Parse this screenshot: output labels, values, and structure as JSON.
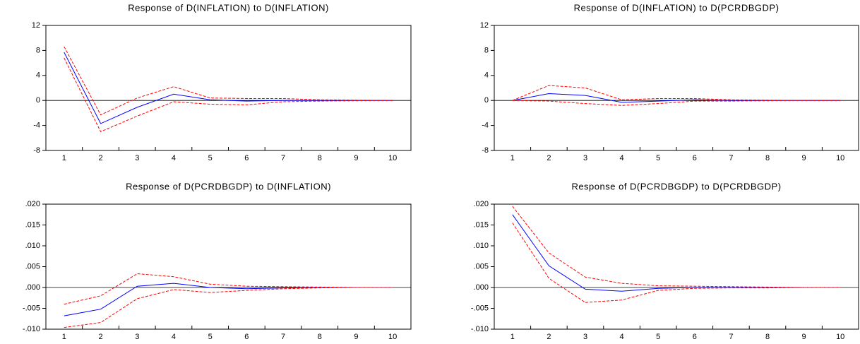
{
  "chart_data": [
    {
      "type": "line",
      "title": "Response of D(INFLATION) to D(INFLATION)",
      "categories": [
        "1",
        "2",
        "3",
        "4",
        "5",
        "6",
        "7",
        "8",
        "9",
        "10"
      ],
      "ylim": [
        -8,
        12
      ],
      "yticks": [
        -8,
        -4,
        0,
        4,
        8,
        12
      ],
      "series": [
        {
          "color": "#0000ff",
          "style": "solid",
          "values": [
            7.7,
            -3.7,
            -1.1,
            1.0,
            0.1,
            -0.1,
            0.0,
            0.0,
            0.0,
            0.0
          ]
        },
        {
          "color": "#ff0000",
          "style": "dashed",
          "values": [
            8.6,
            -2.3,
            0.4,
            2.2,
            0.4,
            0.3,
            0.3,
            0.1,
            0.05,
            0.0
          ]
        },
        {
          "color": "#ff0000",
          "style": "dashed",
          "values": [
            6.8,
            -5.0,
            -2.5,
            -0.2,
            -0.6,
            -0.7,
            -0.2,
            -0.1,
            -0.05,
            0.0
          ]
        }
      ]
    },
    {
      "type": "line",
      "title": "Response of D(INFLATION) to D(PCRDBGDP)",
      "categories": [
        "1",
        "2",
        "3",
        "4",
        "5",
        "6",
        "7",
        "8",
        "9",
        "10"
      ],
      "ylim": [
        -8,
        12
      ],
      "yticks": [
        -8,
        -4,
        0,
        4,
        8,
        12
      ],
      "series": [
        {
          "color": "#0000ff",
          "style": "solid",
          "values": [
            0.0,
            1.1,
            0.8,
            -0.3,
            -0.1,
            0.1,
            0.0,
            0.0,
            0.0,
            0.0
          ]
        },
        {
          "color": "#ff0000",
          "style": "dashed",
          "values": [
            0.0,
            2.4,
            2.0,
            0.1,
            0.3,
            0.3,
            0.1,
            0.05,
            0.0,
            0.0
          ]
        },
        {
          "color": "#ff0000",
          "style": "dashed",
          "values": [
            0.0,
            -0.1,
            -0.5,
            -0.8,
            -0.5,
            -0.1,
            -0.1,
            -0.05,
            0.0,
            0.0
          ]
        }
      ]
    },
    {
      "type": "line",
      "title": "Response of D(PCRDBGDP) to D(INFLATION)",
      "categories": [
        "1",
        "2",
        "3",
        "4",
        "5",
        "6",
        "7",
        "8",
        "9",
        "10"
      ],
      "ylim": [
        -0.01,
        0.02
      ],
      "yticks": [
        {
          "value": -0.01,
          "label": "-.010"
        },
        {
          "value": -0.005,
          "label": "-.005"
        },
        {
          "value": 0,
          "label": ".000"
        },
        {
          "value": 0.005,
          "label": ".005"
        },
        {
          "value": 0.01,
          "label": ".010"
        },
        {
          "value": 0.015,
          "label": ".015"
        },
        {
          "value": 0.02,
          "label": ".020"
        }
      ],
      "series": [
        {
          "color": "#0000ff",
          "style": "solid",
          "values": [
            -0.0068,
            -0.0052,
            0.0003,
            0.001,
            0.0,
            -0.0003,
            -0.0001,
            0.0,
            0.0,
            0.0
          ]
        },
        {
          "color": "#ff0000",
          "style": "dashed",
          "values": [
            -0.004,
            -0.002,
            0.0033,
            0.0026,
            0.0008,
            0.0003,
            0.0002,
            0.0001,
            0.0,
            0.0
          ]
        },
        {
          "color": "#ff0000",
          "style": "dashed",
          "values": [
            -0.0096,
            -0.0084,
            -0.0027,
            -0.0005,
            -0.0012,
            -0.0007,
            -0.0003,
            -0.0001,
            0.0,
            0.0
          ]
        }
      ]
    },
    {
      "type": "line",
      "title": "Response of D(PCRDBGDP) to D(PCRDBGDP)",
      "categories": [
        "1",
        "2",
        "3",
        "4",
        "5",
        "6",
        "7",
        "8",
        "9",
        "10"
      ],
      "ylim": [
        -0.01,
        0.02
      ],
      "yticks": [
        {
          "value": -0.01,
          "label": "-.010"
        },
        {
          "value": -0.005,
          "label": "-.005"
        },
        {
          "value": 0,
          "label": ".000"
        },
        {
          "value": 0.005,
          "label": ".005"
        },
        {
          "value": 0.01,
          "label": ".010"
        },
        {
          "value": 0.015,
          "label": ".015"
        },
        {
          "value": 0.02,
          "label": ".020"
        }
      ],
      "series": [
        {
          "color": "#0000ff",
          "style": "solid",
          "values": [
            0.0175,
            0.0052,
            -0.0004,
            -0.0009,
            -0.0002,
            0.0,
            0.0,
            0.0,
            0.0,
            0.0
          ]
        },
        {
          "color": "#ff0000",
          "style": "dashed",
          "values": [
            0.0195,
            0.0083,
            0.0025,
            0.001,
            0.0004,
            0.0003,
            0.0002,
            0.0001,
            0.0,
            0.0
          ]
        },
        {
          "color": "#ff0000",
          "style": "dashed",
          "values": [
            0.0155,
            0.0022,
            -0.0036,
            -0.003,
            -0.0007,
            -0.0002,
            -0.0001,
            -0.0001,
            0.0,
            0.0
          ]
        }
      ]
    }
  ]
}
